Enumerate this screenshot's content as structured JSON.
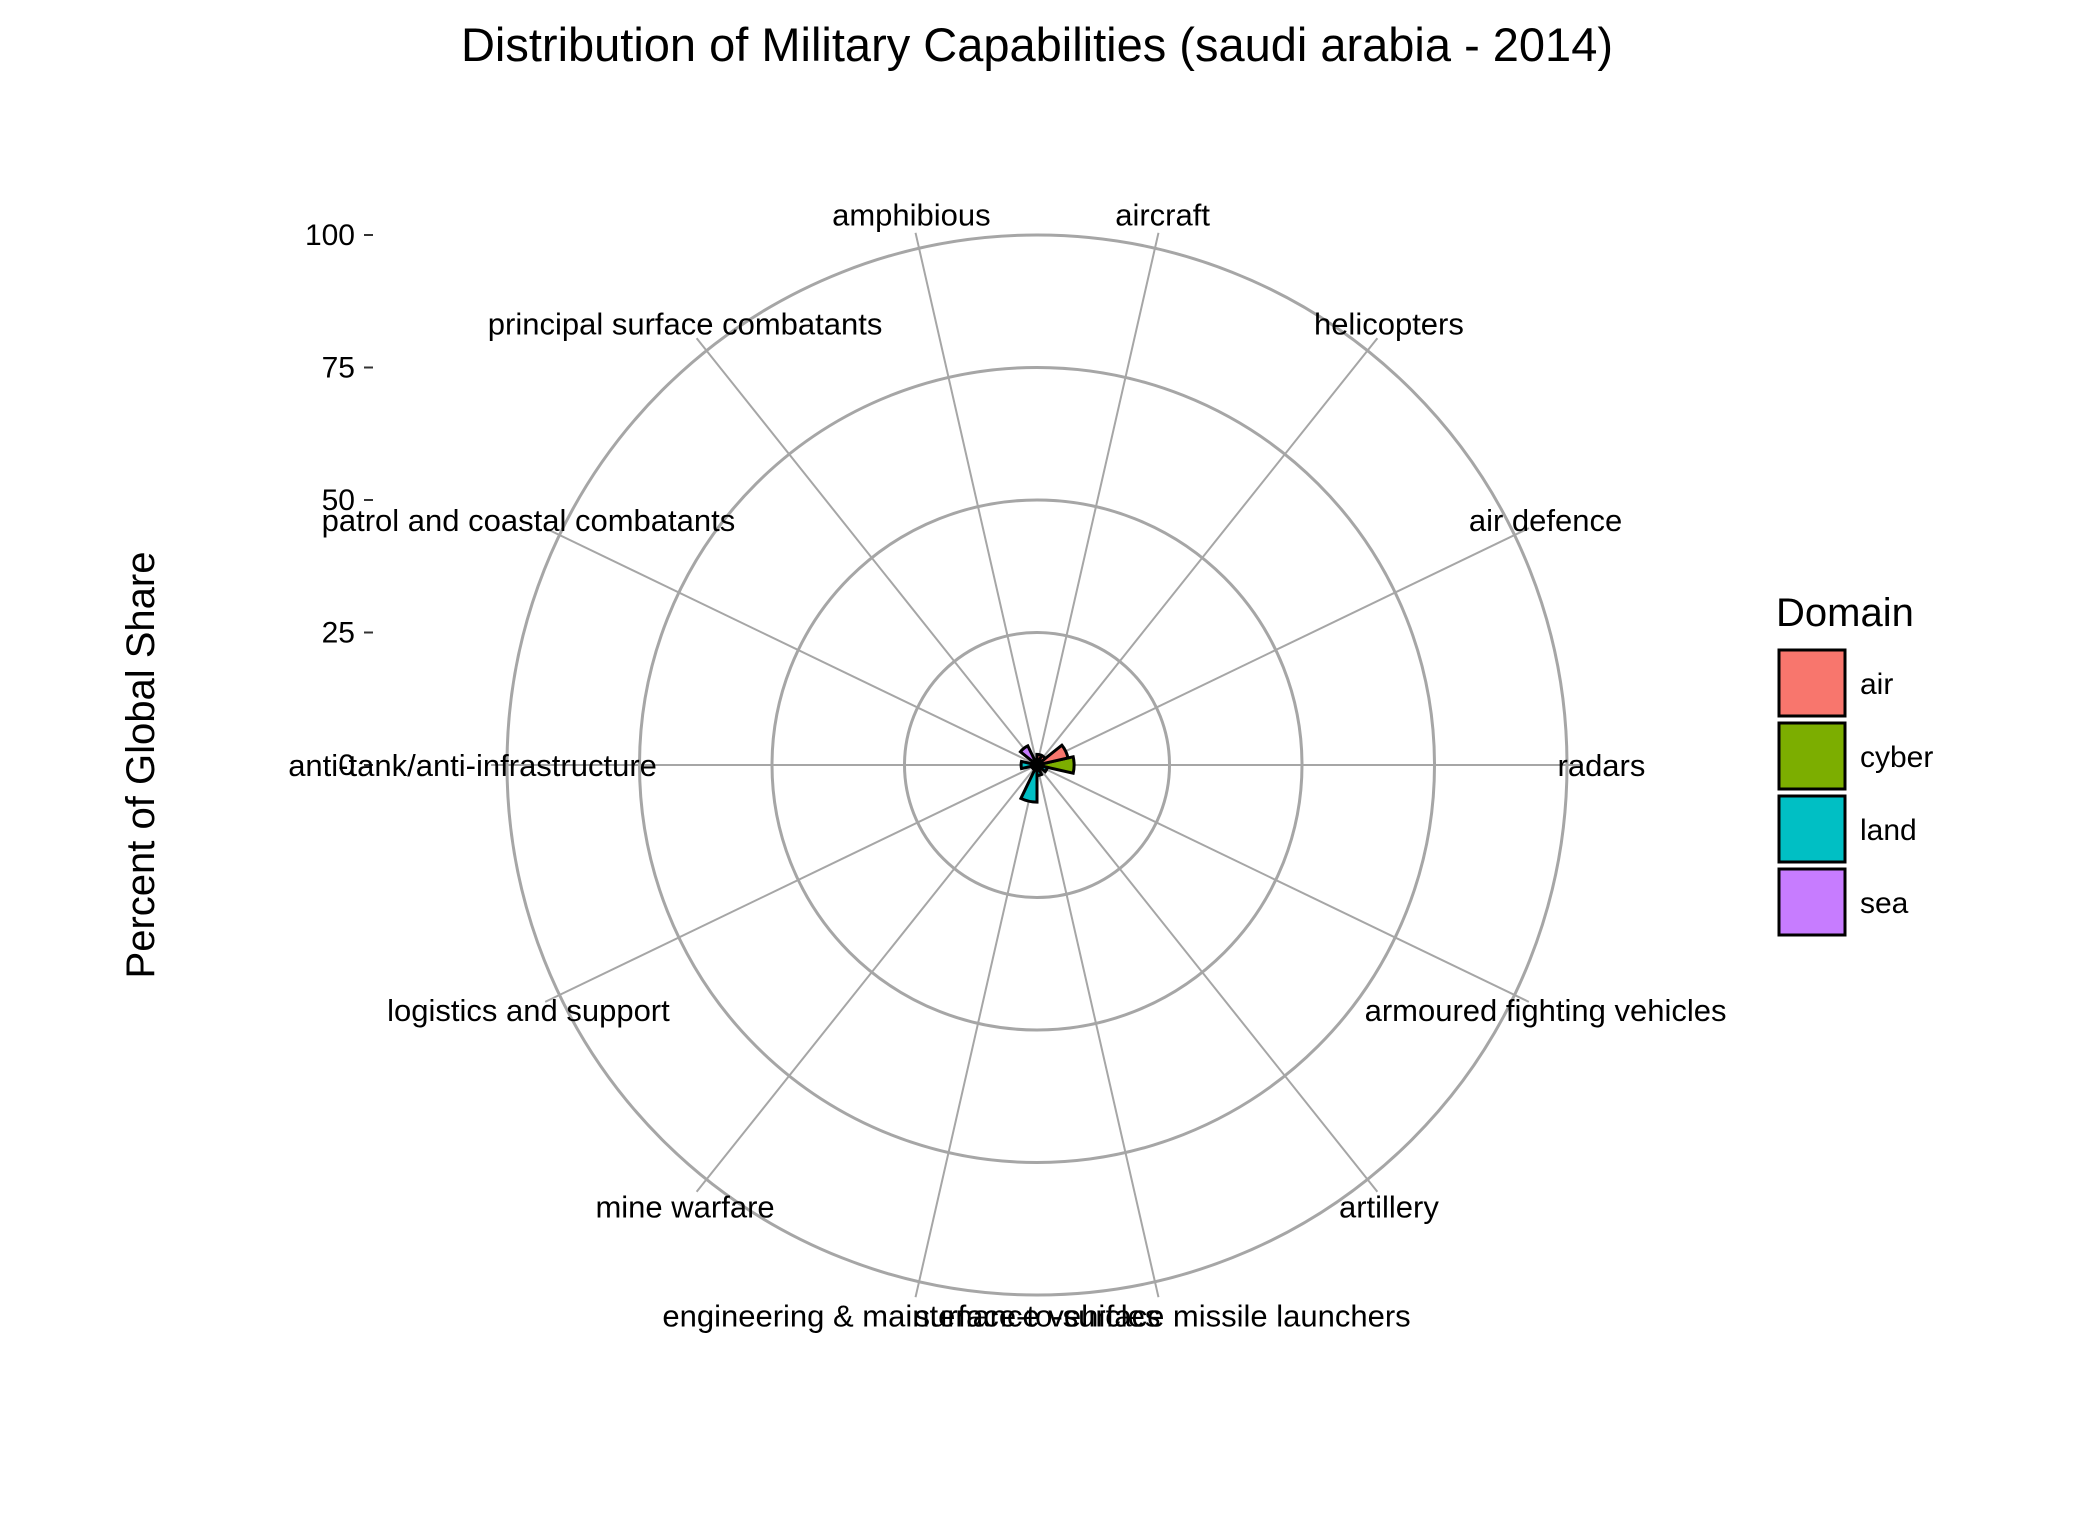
{
  "chart_data": {
    "type": "polar-bar",
    "title": "Distribution of Military Capabilities (saudi arabia - 2014)",
    "ylabel": "Percent of Global Share",
    "ylim": [
      0,
      100
    ],
    "yticks": [
      0,
      25,
      50,
      75,
      100
    ],
    "categories": [
      "radars",
      "air defence",
      "helicopters",
      "aircraft",
      "amphibious",
      "principal surface combatants",
      "patrol and coastal combatants",
      "anti-tank/anti-infrastructure",
      "logistics and support",
      "mine warfare",
      "engineering & maintenance vehicles",
      "surface-to-surface missile launchers",
      "artillery",
      "armoured fighting vehicles"
    ],
    "domains": [
      "cyber",
      "air",
      "air",
      "air",
      "sea",
      "sea",
      "sea",
      "land",
      "land",
      "sea",
      "land",
      "land",
      "land",
      "land"
    ],
    "values": [
      7,
      6,
      2,
      2,
      1,
      4,
      1,
      3,
      1,
      1,
      7,
      2,
      1,
      2
    ],
    "legend": {
      "title": "Domain",
      "entries": [
        {
          "label": "air",
          "color": "#F8766D"
        },
        {
          "label": "cyber",
          "color": "#7CAE00"
        },
        {
          "label": "land",
          "color": "#00BFC4"
        },
        {
          "label": "sea",
          "color": "#C77CFF"
        }
      ],
      "position": "right"
    },
    "grid": true
  }
}
